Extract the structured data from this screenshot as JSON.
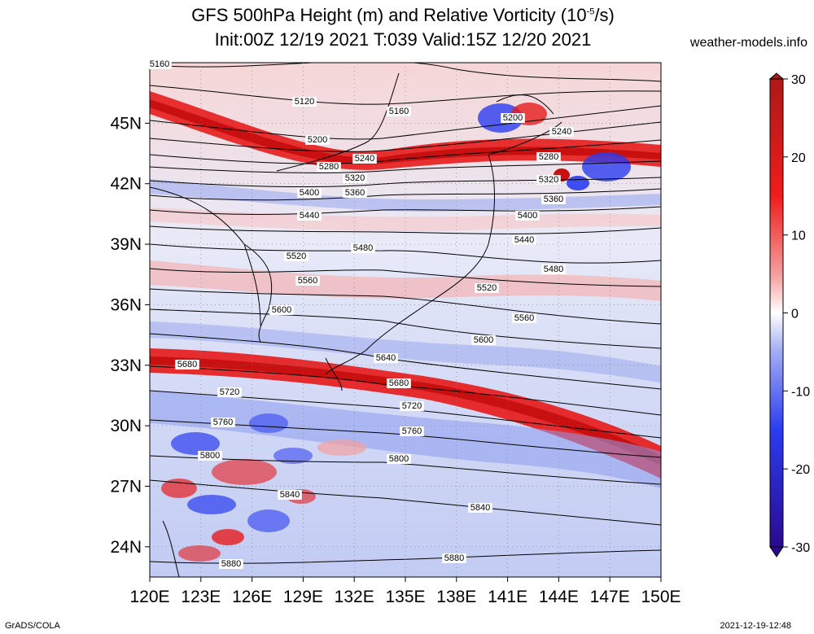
{
  "title": {
    "line1": "GFS 500hPa Height (m) and Relative Vorticity (10",
    "line1_sup": "-5",
    "line1_end": "/s)",
    "line2": "Init:00Z 12/19 2021 T:039 Valid:15Z 12/20 2021"
  },
  "site": "weather-models.info",
  "footer": {
    "left": "GrADS/COLA",
    "right": "2021-12-19-12:48"
  },
  "map": {
    "lon_range": [
      120,
      150
    ],
    "lat_range": [
      22.5,
      48
    ],
    "lon_ticks": [
      "120E",
      "123E",
      "126E",
      "129E",
      "132E",
      "135E",
      "138E",
      "141E",
      "144E",
      "147E",
      "150E"
    ],
    "lat_ticks": [
      "24N",
      "27N",
      "30N",
      "33N",
      "36N",
      "39N",
      "42N",
      "45N"
    ],
    "lat_tick_values": [
      24,
      27,
      30,
      33,
      36,
      39,
      42,
      45
    ],
    "grid": "dotted"
  },
  "colorbar": {
    "ticks": [
      "30",
      "20",
      "10",
      "0",
      "-10",
      "-20",
      "-30"
    ],
    "min": -30,
    "max": 30,
    "colors": {
      "pos_max": "#b01818",
      "pos_mid": "#f01c1c",
      "zero": "#ffffff",
      "neg_mid": "#2a3cf0",
      "neg_max": "#2a0a90"
    }
  },
  "contour_labels": [
    "5160",
    "5120",
    "5160",
    "5200",
    "5200",
    "5240",
    "5240",
    "5280",
    "5280",
    "5320",
    "5320",
    "5360",
    "5360",
    "5400",
    "5400",
    "5440",
    "5440",
    "5480",
    "5480",
    "5520",
    "5520",
    "5560",
    "5560",
    "5600",
    "5600",
    "5640",
    "5680",
    "5680",
    "5720",
    "5720",
    "5760",
    "5760",
    "5800",
    "5800",
    "5840",
    "5840",
    "5880",
    "5880"
  ]
}
